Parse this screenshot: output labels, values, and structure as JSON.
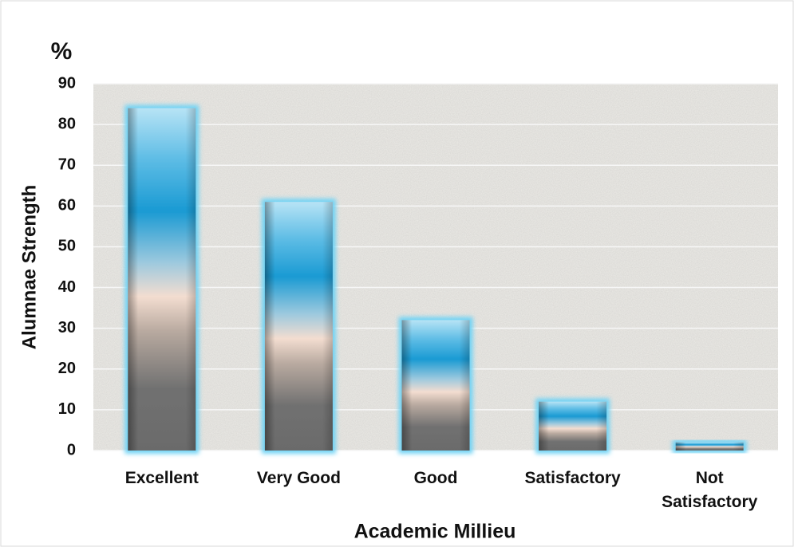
{
  "chart_data": {
    "type": "bar",
    "y_unit": "%",
    "x_label": "Academic Millieu",
    "y_label": "Alumnae Strength",
    "categories": [
      "Excellent",
      "Very Good",
      "Good",
      "Satisfactory",
      "Not Satisfactory"
    ],
    "values": [
      84,
      61,
      32,
      12,
      2
    ],
    "ylim": [
      0,
      90
    ],
    "yticks": [
      0,
      10,
      20,
      30,
      40,
      50,
      60,
      70,
      80,
      90
    ],
    "grid": true
  }
}
